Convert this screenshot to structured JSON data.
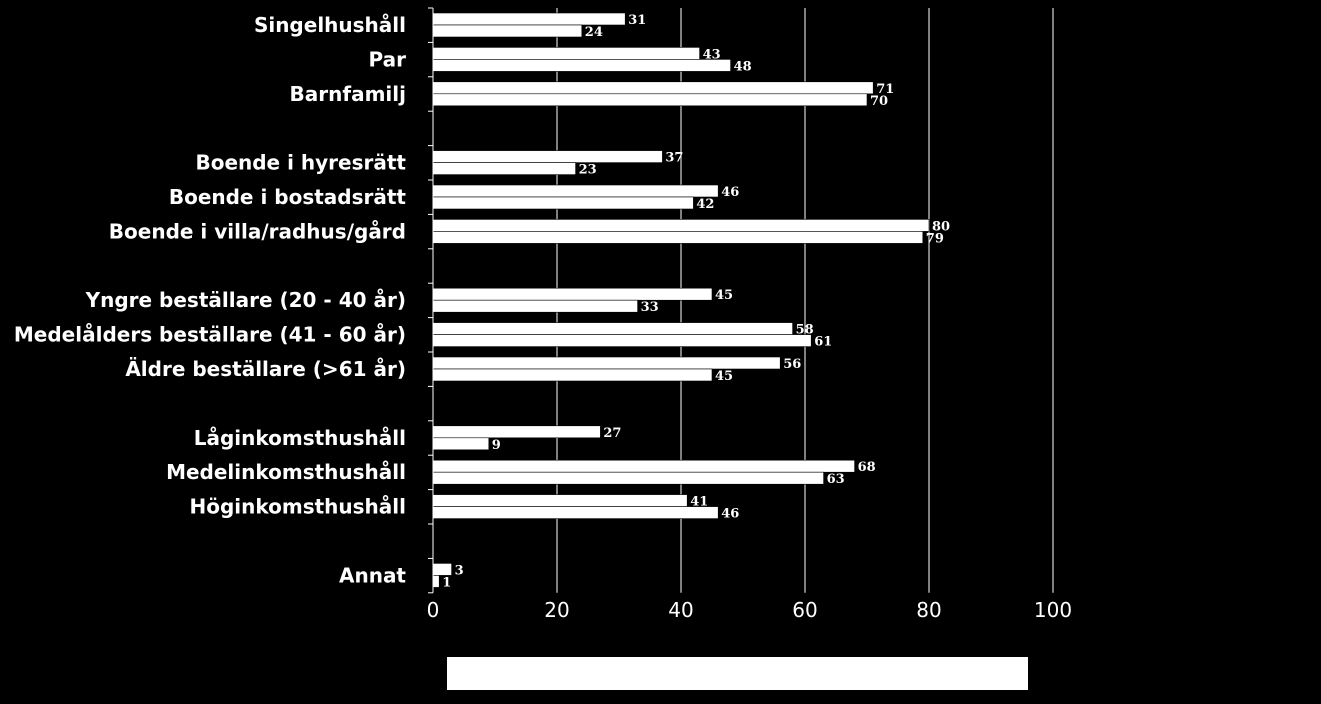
{
  "chart_data": {
    "type": "bar",
    "orientation": "horizontal",
    "title": "",
    "xlabel": "",
    "ylabel": "",
    "xlim": [
      0,
      100
    ],
    "x_ticks": [
      0,
      20,
      40,
      60,
      80,
      100
    ],
    "grid": "vertical",
    "categories": [
      "Singelhushåll",
      "Par",
      "Barnfamilj",
      "",
      "Boende i hyresrätt",
      "Boende i bostadsrätt",
      "Boende i villa/radhus/gård",
      "",
      "Yngre beställare (20 - 40 år)",
      "Medelålders beställare (41 - 60 år)",
      "Äldre beställare (>61 år)",
      "",
      "Låginkomsthushåll",
      "Medelinkomsthushåll",
      "Höginkomsthushåll",
      "",
      "Annat"
    ],
    "series": [
      {
        "values": [
          31,
          43,
          71,
          null,
          37,
          46,
          80,
          null,
          45,
          58,
          56,
          null,
          27,
          68,
          41,
          null,
          3
        ]
      },
      {
        "values": [
          24,
          48,
          70,
          null,
          23,
          42,
          79,
          null,
          33,
          61,
          45,
          null,
          9,
          63,
          46,
          null,
          1
        ]
      }
    ],
    "colors": {
      "background": "#000000",
      "bar": "#ffffff",
      "text": "#ffffff"
    }
  }
}
